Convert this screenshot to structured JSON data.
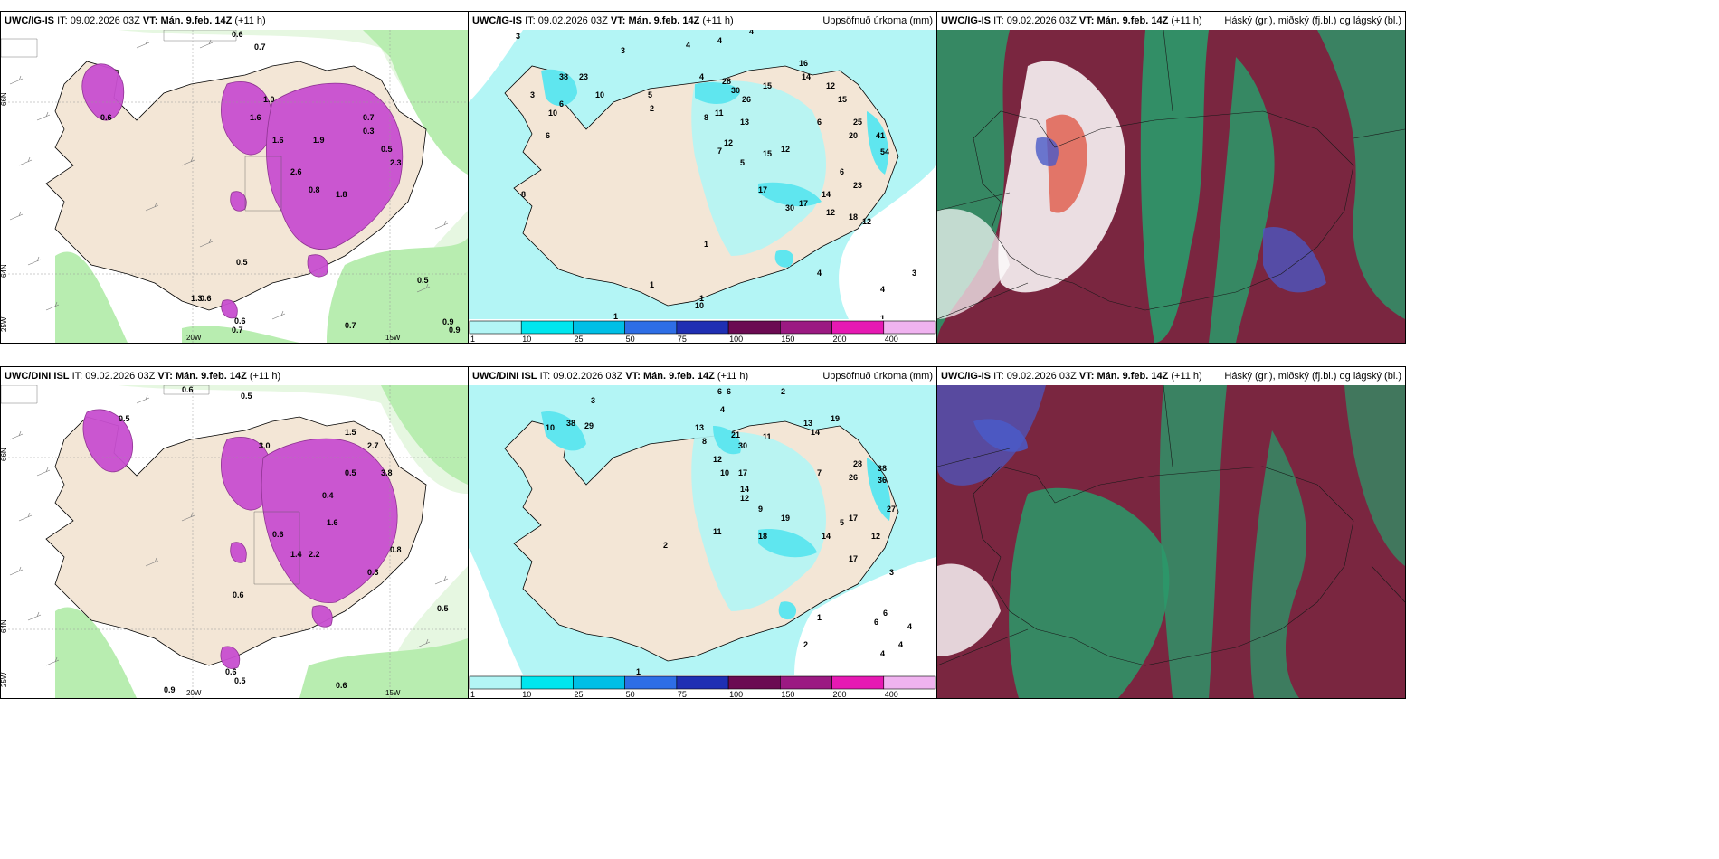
{
  "panels": {
    "p1": {
      "model": "UWC/IG-IS",
      "it_label": "IT:",
      "it": "09.02.2026 03Z",
      "vt_label": "VT:",
      "vt": "Mán. 9.feb. 14Z",
      "lead": "(+11 h)",
      "right": "",
      "lon_labels": [
        "20W",
        "15W"
      ],
      "lat_labels": [
        "66N",
        "64N",
        "25W"
      ],
      "values": [
        "0.7",
        "0.6",
        "0.5",
        "0.6",
        "1.6",
        "1.9",
        "0.7",
        "0.6",
        "0.3",
        "2.3",
        "1.8",
        "0.8",
        "0.5",
        "1.0",
        "0.6",
        "0.7",
        "0.5",
        "0.9",
        "0.7",
        "0.9",
        "1.6",
        "1.3",
        "2.6"
      ]
    },
    "p2": {
      "model": "UWC/IG-IS",
      "it_label": "IT:",
      "it": "09.02.2026 03Z",
      "vt_label": "VT:",
      "vt": "Mán. 9.feb. 14Z",
      "lead": "(+11 h)",
      "right": "Uppsöfnuð úrkoma (mm)",
      "values": [
        "3",
        "3",
        "4",
        "4",
        "4",
        "16",
        "38",
        "23",
        "10",
        "5",
        "2",
        "3",
        "6",
        "10",
        "6",
        "4",
        "28",
        "30",
        "26",
        "15",
        "14",
        "12",
        "15",
        "13",
        "6",
        "11",
        "12",
        "7",
        "12",
        "15",
        "17",
        "17",
        "30",
        "14",
        "12",
        "25",
        "20",
        "41",
        "54",
        "23",
        "18",
        "12",
        "8",
        "1",
        "1",
        "1",
        "10",
        "4",
        "3",
        "4",
        "1",
        "8",
        "5",
        "6",
        "1"
      ]
    },
    "p3": {
      "model": "UWC/IG-IS",
      "it_label": "IT:",
      "it": "09.02.2026 03Z",
      "vt_label": "VT:",
      "vt": "Mán. 9.feb. 14Z",
      "lead": "(+11 h)",
      "right": "Háský (gr.), miðský (fj.bl.) og lágský (bl.)"
    },
    "p4": {
      "model": "UWC/DINI ISL",
      "it_label": "IT:",
      "it": "09.02.2026 03Z",
      "vt_label": "VT:",
      "vt": "Mán. 9.feb. 14Z",
      "lead": "(+11 h)",
      "right": "",
      "lon_labels": [
        "20W",
        "15W"
      ],
      "lat_labels": [
        "66N",
        "64N",
        "25W"
      ],
      "values": [
        "0.6",
        "0.5",
        "0.5",
        "1.5",
        "2.7",
        "3.8",
        "0.5",
        "0.6",
        "0.4",
        "2.2",
        "0.3",
        "0.8",
        "0.5",
        "0.6",
        "0.9",
        "0.6",
        "0.5",
        "0.6",
        "1.4",
        "3.0",
        "1.6"
      ]
    },
    "p5": {
      "model": "UWC/DINI ISL",
      "it_label": "IT:",
      "it": "09.02.2026 03Z",
      "vt_label": "VT:",
      "vt": "Mán. 9.feb. 14Z",
      "lead": "(+11 h)",
      "right": "Uppsöfnuð úrkoma (mm)",
      "values": [
        "3",
        "6",
        "6",
        "2",
        "10",
        "38",
        "29",
        "4",
        "13",
        "21",
        "30",
        "11",
        "13",
        "14",
        "19",
        "8",
        "12",
        "10",
        "17",
        "14",
        "12",
        "28",
        "26",
        "38",
        "36",
        "27",
        "18",
        "19",
        "17",
        "14",
        "12",
        "17",
        "9",
        "7",
        "5",
        "11",
        "2",
        "1",
        "2",
        "4",
        "4",
        "6",
        "6",
        "4",
        "3",
        "1"
      ]
    },
    "p6": {
      "model": "UWC/IG-IS",
      "it_label": "IT:",
      "it": "09.02.2026 03Z",
      "vt_label": "VT:",
      "vt": "Mán. 9.feb. 14Z",
      "lead": "(+11 h)",
      "right": "Háský (gr.), miðský (fj.bl.) og lágský (bl.)"
    }
  },
  "colorbar": {
    "levels": [
      "1",
      "10",
      "25",
      "50",
      "75",
      "100",
      "150",
      "200",
      "400"
    ],
    "colors": [
      "#b3f5f5",
      "#00e6ee",
      "#00bfe6",
      "#2e6ee6",
      "#1f2fb3",
      "#6b0a52",
      "#9b1a82",
      "#e619b3",
      "#f0b3f0"
    ]
  },
  "colors": {
    "land": "#f3e6d6",
    "sea_wind_light": "#e6f7e1",
    "sea_wind_green": "#b8edb0",
    "precip_cyan": "#b3f5f5",
    "precip_cyan2": "#5fe6ef",
    "purple": "#c84fd0",
    "purple_dark": "#8a2a8f",
    "cloud_red": "#8a2a3c",
    "cloud_green": "#2a9a6a",
    "cloud_blue": "#4a5ac8"
  }
}
